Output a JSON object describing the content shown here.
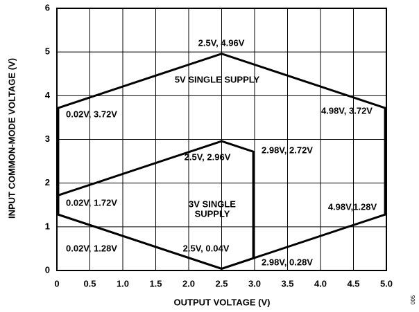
{
  "chart_data": {
    "type": "line",
    "x_label": "OUTPUT VOLTAGE (V)",
    "y_label": "INPUT COMMON-MODE VOLTAGE (V)",
    "figure_id": "005",
    "xlim": [
      0,
      5
    ],
    "ylim": [
      0,
      6
    ],
    "xticks": [
      0,
      0.5,
      {
        "value": 1,
        "label": "1.0"
      },
      1.5,
      {
        "value": 2,
        "label": "2.0"
      },
      2.5,
      {
        "value": 3,
        "label": "3.0"
      },
      3.5,
      {
        "value": 4,
        "label": "4.0"
      },
      4.5,
      {
        "value": 5,
        "label": "5.0"
      }
    ],
    "yticks": [
      0,
      1,
      2,
      3,
      4,
      5,
      6
    ],
    "grid": true,
    "series": [
      {
        "color": "#000000",
        "x": [
          0.02,
          2.5,
          4.98,
          4.98,
          2.5,
          0.02
        ],
        "values": [
          3.72,
          4.96,
          3.72,
          1.28,
          0.04,
          1.28
        ]
      },
      {
        "color": "#000000",
        "x": [
          0.02,
          2.5,
          2.98,
          2.98,
          2.5,
          0.02
        ],
        "values": [
          1.72,
          2.96,
          2.72,
          0.28,
          0.04,
          1.28
        ]
      }
    ],
    "annotations": [
      "2.5V, 4.96V",
      "5V SINGLE SUPPLY",
      "0.02V, 3.72V",
      "4.98V, 3.72V",
      "2.5V, 2.96V",
      "2.98V, 2.72V",
      "0.02V, 1.72V",
      "3V SINGLE",
      "SUPPLY",
      "4.98V,1.28V",
      "0.02V, 1.28V",
      "2.5V, 0.04V",
      "2.98V, 0.28V"
    ]
  }
}
